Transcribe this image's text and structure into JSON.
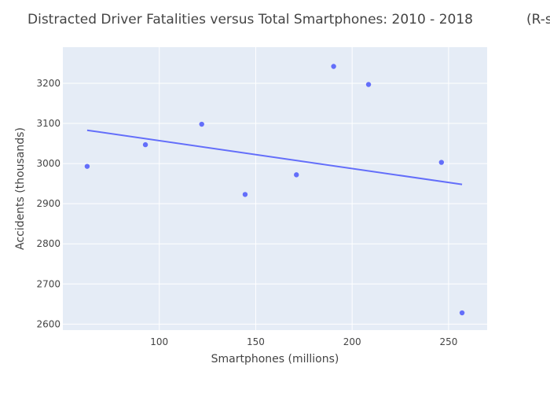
{
  "chart_data": {
    "type": "scatter",
    "title": "Distracted Driver Fatalities versus Total Smartphones: 2010 - 2018",
    "title_suffix": "(R-s",
    "xlabel": "Smartphones (millions)",
    "ylabel": "Accidents (thousands)",
    "xlim": [
      50,
      270
    ],
    "ylim": [
      2585,
      3290
    ],
    "x_ticks": [
      100,
      150,
      200,
      250
    ],
    "y_ticks": [
      2600,
      2700,
      2800,
      2900,
      3000,
      3100,
      3200
    ],
    "grid": true,
    "legend": "none",
    "colors": {
      "marker": "#636efa",
      "line": "#636efa",
      "plot_bg": "#e5ecf6",
      "grid": "#ffffff"
    },
    "series": [
      {
        "mode": "markers",
        "points": [
          {
            "x": 62.6,
            "y": 2993
          },
          {
            "x": 92.8,
            "y": 3047
          },
          {
            "x": 122.0,
            "y": 3098
          },
          {
            "x": 144.5,
            "y": 2923
          },
          {
            "x": 171.1,
            "y": 2972
          },
          {
            "x": 190.4,
            "y": 3242
          },
          {
            "x": 208.5,
            "y": 3197
          },
          {
            "x": 246.3,
            "y": 3003
          },
          {
            "x": 257.0,
            "y": 2628
          }
        ]
      },
      {
        "mode": "lines",
        "points": [
          {
            "x": 62.6,
            "y": 3083
          },
          {
            "x": 257.0,
            "y": 2948
          }
        ]
      }
    ]
  }
}
